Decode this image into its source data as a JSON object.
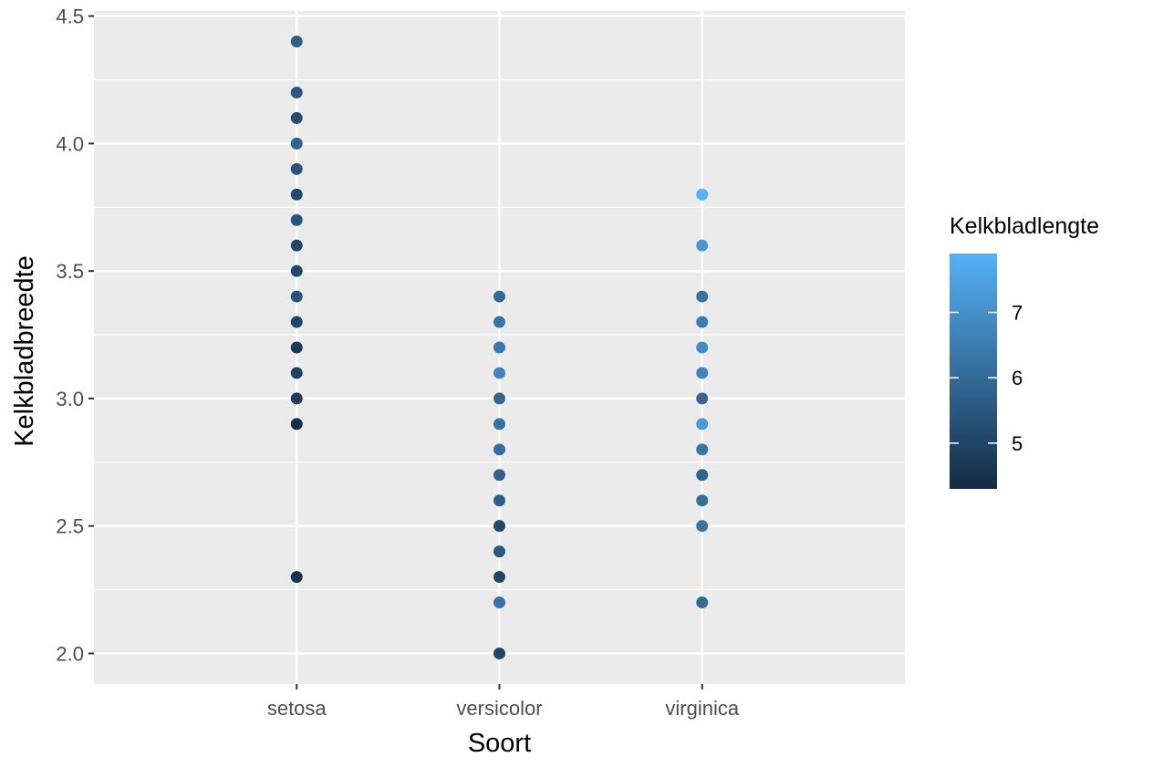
{
  "chart_data": {
    "type": "scatter",
    "title": "",
    "xlabel": "Soort",
    "ylabel": "Kelkbladbreedte",
    "categories": [
      "setosa",
      "versicolor",
      "virginica"
    ],
    "ylim": [
      1.88,
      4.52
    ],
    "yticks": [
      2.0,
      2.5,
      3.0,
      3.5,
      4.0,
      4.5
    ],
    "ytick_labels": [
      "2.0",
      "2.5",
      "3.0",
      "3.5",
      "4.0",
      "4.5"
    ],
    "grid": true,
    "legend": {
      "title": "Kelkbladlengte",
      "placement": "right",
      "type": "colorbar",
      "range": [
        4.3,
        7.9
      ],
      "ticks": [
        5,
        6,
        7
      ],
      "tick_labels": [
        "5",
        "6",
        "7"
      ],
      "low_color": "#132B43",
      "high_color": "#56B1F7"
    },
    "colors": {
      "panel_background": "#EBEBEB",
      "grid": "#FFFFFF",
      "tick_text": "#4D4D4D"
    },
    "series": [
      {
        "category": "setosa",
        "points": [
          {
            "y": 4.4,
            "color_value": 5.7
          },
          {
            "y": 4.2,
            "color_value": 5.5
          },
          {
            "y": 4.1,
            "color_value": 5.2
          },
          {
            "y": 4.0,
            "color_value": 5.8
          },
          {
            "y": 3.9,
            "color_value": 5.4
          },
          {
            "y": 3.8,
            "color_value": 5.1
          },
          {
            "y": 3.7,
            "color_value": 5.4
          },
          {
            "y": 3.6,
            "color_value": 5.0
          },
          {
            "y": 3.5,
            "color_value": 5.1
          },
          {
            "y": 3.4,
            "color_value": 5.4
          },
          {
            "y": 3.3,
            "color_value": 5.0
          },
          {
            "y": 3.2,
            "color_value": 4.7
          },
          {
            "y": 3.1,
            "color_value": 4.9
          },
          {
            "y": 3.0,
            "color_value": 4.8
          },
          {
            "y": 2.9,
            "color_value": 4.4
          },
          {
            "y": 2.3,
            "color_value": 4.5
          }
        ]
      },
      {
        "category": "versicolor",
        "points": [
          {
            "y": 3.4,
            "color_value": 6.0
          },
          {
            "y": 3.3,
            "color_value": 6.3
          },
          {
            "y": 3.2,
            "color_value": 6.4
          },
          {
            "y": 3.1,
            "color_value": 6.7
          },
          {
            "y": 3.0,
            "color_value": 5.9
          },
          {
            "y": 2.9,
            "color_value": 6.2
          },
          {
            "y": 2.8,
            "color_value": 6.1
          },
          {
            "y": 2.7,
            "color_value": 5.8
          },
          {
            "y": 2.6,
            "color_value": 5.7
          },
          {
            "y": 2.5,
            "color_value": 5.1
          },
          {
            "y": 2.4,
            "color_value": 5.5
          },
          {
            "y": 2.3,
            "color_value": 5.0
          },
          {
            "y": 2.2,
            "color_value": 6.2
          },
          {
            "y": 2.0,
            "color_value": 5.0
          }
        ]
      },
      {
        "category": "virginica",
        "points": [
          {
            "y": 3.8,
            "color_value": 7.9
          },
          {
            "y": 3.6,
            "color_value": 7.2
          },
          {
            "y": 3.4,
            "color_value": 6.2
          },
          {
            "y": 3.3,
            "color_value": 6.5
          },
          {
            "y": 3.2,
            "color_value": 6.9
          },
          {
            "y": 3.1,
            "color_value": 6.7
          },
          {
            "y": 3.0,
            "color_value": 5.9
          },
          {
            "y": 2.9,
            "color_value": 7.3
          },
          {
            "y": 2.8,
            "color_value": 6.3
          },
          {
            "y": 2.7,
            "color_value": 5.8
          },
          {
            "y": 2.6,
            "color_value": 6.1
          },
          {
            "y": 2.5,
            "color_value": 6.3
          },
          {
            "y": 2.2,
            "color_value": 6.0
          }
        ]
      }
    ]
  }
}
